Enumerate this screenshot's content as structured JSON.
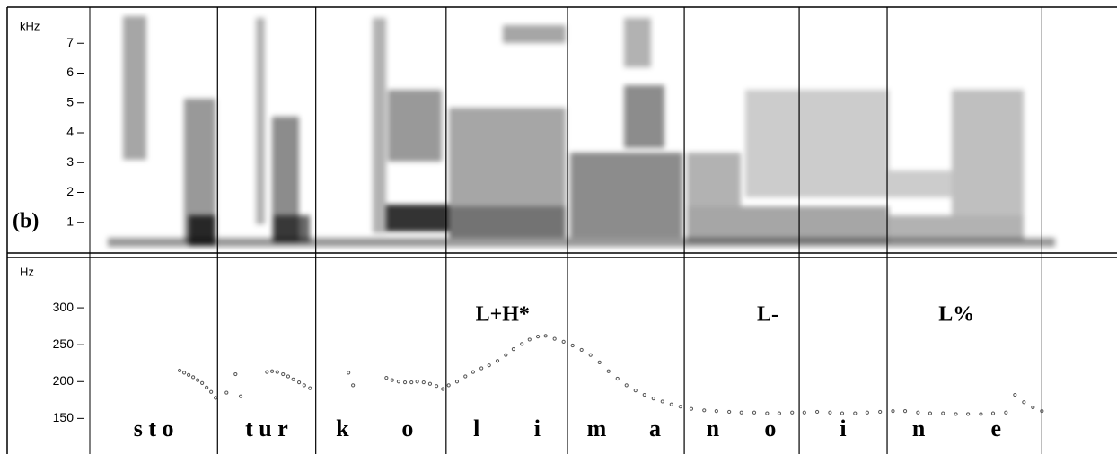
{
  "chart_data": [
    {
      "type": "spectrogram",
      "ylabel": "kHz",
      "panel_label": "(b)",
      "ylim": [
        0,
        8
      ],
      "yticks": [
        1,
        2,
        3,
        4,
        5,
        6,
        7
      ]
    },
    {
      "type": "scatter",
      "ylabel": "Hz",
      "color": "#555555",
      "xlim": [
        0,
        1.6
      ],
      "ylim": [
        120,
        350
      ],
      "yticks": [
        150,
        200,
        250,
        300
      ],
      "boundaries": [
        0.199,
        0.352,
        0.555,
        0.744,
        0.926,
        1.105,
        1.242,
        1.483
      ],
      "segments": [
        {
          "label": "s t o",
          "start": 0,
          "end": 0.199
        },
        {
          "label": "t u r",
          "start": 0.199,
          "end": 0.352
        },
        {
          "label": "k",
          "start": 0.352,
          "end": 0.435
        },
        {
          "label": "o",
          "start": 0.435,
          "end": 0.555
        },
        {
          "label": "l",
          "start": 0.555,
          "end": 0.65
        },
        {
          "label": "i",
          "start": 0.65,
          "end": 0.744
        },
        {
          "label": "m",
          "start": 0.744,
          "end": 0.835
        },
        {
          "label": "a",
          "start": 0.835,
          "end": 0.926
        },
        {
          "label": "n",
          "start": 0.926,
          "end": 1.015
        },
        {
          "label": "o",
          "start": 1.015,
          "end": 1.105
        },
        {
          "label": "i",
          "start": 1.105,
          "end": 1.242
        },
        {
          "label": "n",
          "start": 1.242,
          "end": 1.34
        },
        {
          "label": "e",
          "start": 1.34,
          "end": 1.483
        }
      ],
      "tones": [
        {
          "label": "L+H*",
          "x": 0.643
        },
        {
          "label": "L-",
          "x": 1.056
        },
        {
          "label": "L%",
          "x": 1.35
        }
      ],
      "x": [
        0.14,
        0.147,
        0.154,
        0.161,
        0.168,
        0.175,
        0.182,
        0.189,
        0.196,
        0.213,
        0.227,
        0.235,
        0.276,
        0.284,
        0.292,
        0.301,
        0.309,
        0.317,
        0.326,
        0.334,
        0.343,
        0.403,
        0.41,
        0.462,
        0.471,
        0.481,
        0.491,
        0.501,
        0.51,
        0.52,
        0.53,
        0.54,
        0.55,
        0.559,
        0.572,
        0.585,
        0.597,
        0.61,
        0.622,
        0.635,
        0.648,
        0.66,
        0.673,
        0.685,
        0.698,
        0.71,
        0.724,
        0.738,
        0.752,
        0.766,
        0.78,
        0.794,
        0.808,
        0.822,
        0.836,
        0.85,
        0.864,
        0.878,
        0.892,
        0.906,
        0.92,
        0.937,
        0.957,
        0.976,
        0.996,
        1.015,
        1.035,
        1.055,
        1.074,
        1.094,
        1.113,
        1.133,
        1.153,
        1.172,
        1.192,
        1.211,
        1.231,
        1.251,
        1.27,
        1.29,
        1.309,
        1.329,
        1.349,
        1.368,
        1.388,
        1.407,
        1.427,
        1.441,
        1.455,
        1.469,
        1.483
      ],
      "values": [
        215,
        212,
        209,
        206,
        202,
        198,
        192,
        186,
        178,
        185,
        210,
        180,
        213,
        214,
        213,
        210,
        207,
        203,
        199,
        195,
        191,
        212,
        195,
        205,
        202,
        200,
        199,
        199,
        200,
        199,
        197,
        194,
        190,
        195,
        200,
        207,
        213,
        218,
        222,
        228,
        236,
        244,
        251,
        257,
        261,
        262,
        258,
        254,
        249,
        243,
        236,
        226,
        214,
        204,
        195,
        188,
        182,
        177,
        173,
        169,
        166,
        163,
        161,
        160,
        159,
        158,
        158,
        157,
        157,
        158,
        158,
        159,
        158,
        157,
        157,
        158,
        159,
        160,
        160,
        158,
        157,
        157,
        156,
        156,
        156,
        157,
        158,
        182,
        172,
        165,
        160
      ]
    }
  ]
}
